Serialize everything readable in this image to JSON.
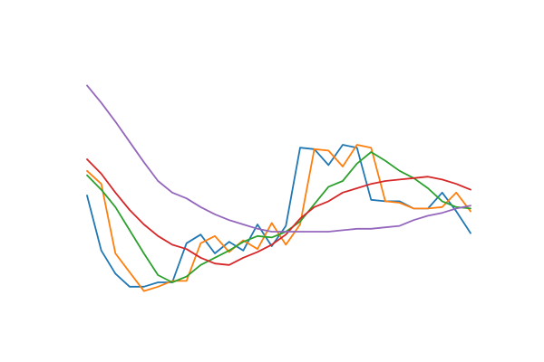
{
  "chart_data": {
    "type": "line",
    "x": [
      0,
      1,
      2,
      3,
      4,
      5,
      6,
      7,
      8,
      9,
      10,
      11,
      12,
      13,
      14,
      15,
      16,
      17,
      18,
      19,
      20,
      21,
      22,
      23,
      24,
      25,
      26,
      27
    ],
    "series": [
      {
        "color": "#1f77b4",
        "values": [
          0.6,
          0.22,
          0.06,
          -0.03,
          -0.03,
          0.0,
          0.0,
          0.27,
          0.33,
          0.2,
          0.28,
          0.22,
          0.4,
          0.25,
          0.39,
          0.93,
          0.92,
          0.81,
          0.95,
          0.93,
          0.57,
          0.56,
          0.56,
          0.51,
          0.51,
          0.62,
          0.49,
          0.34
        ]
      },
      {
        "color": "#ff7f0e",
        "values": [
          0.77,
          0.68,
          0.2,
          0.07,
          -0.06,
          -0.03,
          0.01,
          0.01,
          0.27,
          0.32,
          0.21,
          0.29,
          0.23,
          0.41,
          0.26,
          0.4,
          0.92,
          0.91,
          0.8,
          0.95,
          0.93,
          0.56,
          0.55,
          0.51,
          0.51,
          0.52,
          0.62,
          0.49
        ]
      },
      {
        "color": "#2ca02c",
        "values": [
          0.74,
          0.64,
          0.52,
          0.36,
          0.2,
          0.05,
          0.0,
          0.04,
          0.12,
          0.17,
          0.22,
          0.28,
          0.32,
          0.31,
          0.35,
          0.42,
          0.54,
          0.66,
          0.7,
          0.82,
          0.9,
          0.84,
          0.77,
          0.72,
          0.65,
          0.56,
          0.52,
          0.51
        ]
      },
      {
        "color": "#d62728",
        "values": [
          0.85,
          0.75,
          0.62,
          0.5,
          0.4,
          0.32,
          0.26,
          0.23,
          0.17,
          0.13,
          0.12,
          0.17,
          0.21,
          0.26,
          0.33,
          0.44,
          0.52,
          0.56,
          0.62,
          0.65,
          0.68,
          0.7,
          0.71,
          0.72,
          0.73,
          0.71,
          0.68,
          0.64
        ]
      },
      {
        "color": "#9467bd",
        "values": [
          1.36,
          1.24,
          1.11,
          0.97,
          0.83,
          0.7,
          0.62,
          0.58,
          0.52,
          0.47,
          0.43,
          0.4,
          0.37,
          0.35,
          0.35,
          0.35,
          0.35,
          0.35,
          0.36,
          0.37,
          0.37,
          0.38,
          0.39,
          0.43,
          0.46,
          0.48,
          0.51,
          0.53
        ]
      }
    ],
    "title": "",
    "xlabel": "",
    "ylabel": "",
    "xlim": [
      0,
      27
    ],
    "ylim": [
      -0.3,
      1.7
    ],
    "axes_visible": false,
    "grid": false,
    "legend": "none"
  }
}
